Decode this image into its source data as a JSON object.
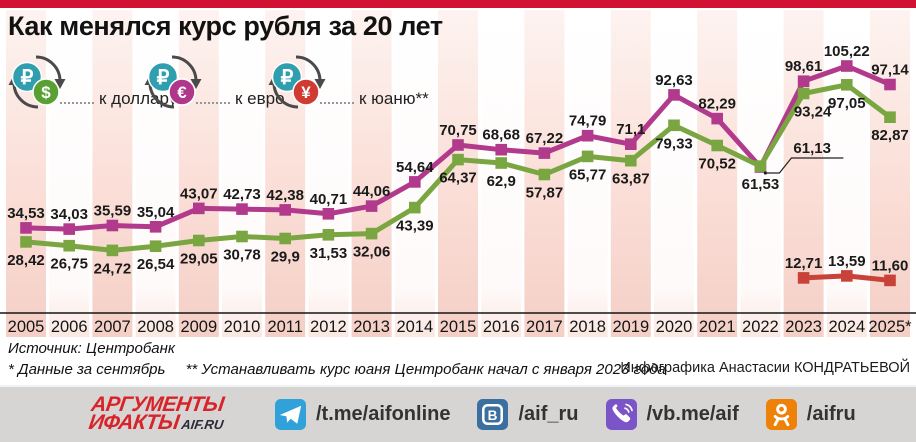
{
  "header": {
    "title": "Как менялся курс рубля за 20 лет"
  },
  "legend": [
    {
      "label": "к доллару",
      "symbol": "$",
      "coin_color": "#59a032"
    },
    {
      "label": "к евро",
      "symbol": "€",
      "coin_color": "#b0368c"
    },
    {
      "label": "к юаню**",
      "symbol": "¥",
      "coin_color": "#cf3b33"
    }
  ],
  "chart_data": {
    "type": "line",
    "title": "Как менялся курс рубля за 20 лет",
    "categories": [
      "2005",
      "2006",
      "2007",
      "2008",
      "2009",
      "2010",
      "2011",
      "2012",
      "2013",
      "2014",
      "2015",
      "2016",
      "2017",
      "2018",
      "2019",
      "2020",
      "2021",
      "2022",
      "2023",
      "2024",
      "2025*"
    ],
    "ylim": [
      0,
      110
    ],
    "grid": "vertical-stripes",
    "legend_position": "top-left",
    "series": [
      {
        "name": "к евро",
        "color": "#b13a8c",
        "label_side": "above",
        "values": [
          34.53,
          34.03,
          35.59,
          35.04,
          43.07,
          42.73,
          42.38,
          40.71,
          44.06,
          54.64,
          70.75,
          68.68,
          67.22,
          74.79,
          71.1,
          92.63,
          82.29,
          61.13,
          98.61,
          105.22,
          97.14
        ],
        "labels": [
          "34,53",
          "34,03",
          "35,59",
          "35,04",
          "43,07",
          "42,73",
          "42,38",
          "40,71",
          "44,06",
          "54,64",
          "70,75",
          "68,68",
          "67,22",
          "74,79",
          "71,1",
          "92,63",
          "82,29",
          "",
          "98,61",
          "105,22",
          "97,14"
        ],
        "dx": {}
      },
      {
        "name": "к доллару",
        "color": "#7aa642",
        "label_side": "below",
        "values": [
          28.42,
          26.75,
          24.72,
          26.54,
          29.05,
          30.78,
          29.9,
          31.53,
          32.06,
          43.39,
          64.37,
          62.9,
          57.87,
          65.77,
          63.87,
          79.33,
          70.52,
          61.53,
          93.24,
          97.05,
          82.87
        ],
        "labels": [
          "28,42",
          "26,75",
          "24,72",
          "26,54",
          "29,05",
          "30,78",
          "29,9",
          "31,53",
          "32,06",
          "43,39",
          "64,37",
          "62,9",
          "57,87",
          "65,77",
          "63,87",
          "79,33",
          "70,52",
          "61,53",
          "93,24",
          "97,05",
          "82,87"
        ],
        "dx": {
          "18": 9
        }
      },
      {
        "name": "к юаню",
        "color": "#c9423a",
        "label_side": "above",
        "values": [
          null,
          null,
          null,
          null,
          null,
          null,
          null,
          null,
          null,
          null,
          null,
          null,
          null,
          null,
          null,
          null,
          null,
          null,
          12.71,
          13.59,
          11.6
        ],
        "labels": [
          "",
          "",
          "",
          "",
          "",
          "",
          "",
          "",
          "",
          "",
          "",
          "",
          "",
          "",
          "",
          "",
          "",
          "",
          "12,71",
          "13,59",
          "11,60"
        ],
        "dx": {}
      }
    ],
    "annotation": {
      "series_index": 0,
      "index": 17,
      "text": "61,13"
    }
  },
  "source": {
    "line1": "Источник: Центробанк",
    "note1": "* Данные за сентябрь",
    "note2": "** Устанавливать курс юаня Центробанк начал с января 2023 года",
    "credit": "Инфографика Анастасии КОНДРАТЬЕВОЙ"
  },
  "footer": {
    "logo": {
      "line1": "АРГУМЕНТЫ",
      "line2": "ИФАКТЫ",
      "suffix": "AIF.RU"
    },
    "socials": [
      {
        "network": "telegram",
        "handle": "/t.me/aifonline",
        "color": "#31a2d9"
      },
      {
        "network": "vk",
        "handle": "/aif_ru",
        "color": "#3a6fa0",
        "icon_letter": "В"
      },
      {
        "network": "viber",
        "handle": "/vb.me/aif",
        "color": "#7b54c8"
      },
      {
        "network": "ok",
        "handle": "/aifru",
        "color": "#ee8208"
      }
    ]
  },
  "colors": {
    "topbar": "#d11232",
    "axis": "#151515",
    "stripe_pink": "#f4cfc6",
    "stripe_light": "#fae7e1"
  }
}
